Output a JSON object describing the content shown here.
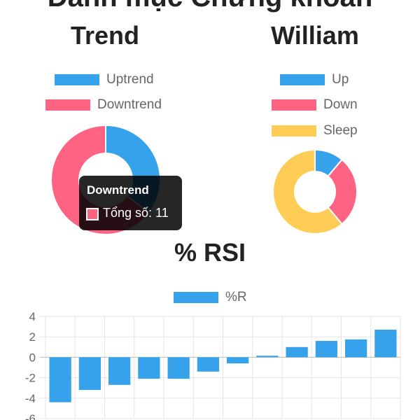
{
  "page": {
    "title": "Danh mục Chứng khoán"
  },
  "chart_data": [
    {
      "type": "pie",
      "variant": "doughnut",
      "title": "Trend",
      "labels": [
        "Uptrend",
        "Downtrend"
      ],
      "values": [
        6,
        11
      ],
      "colors": [
        "#36a2eb",
        "#ff6384"
      ],
      "legend_position": "top",
      "tooltip": {
        "title": "Downtrend",
        "body": "Tổng số: 11",
        "color": "#ff6384"
      }
    },
    {
      "type": "pie",
      "variant": "doughnut",
      "title": "William",
      "labels": [
        "Up",
        "Down",
        "Sleep"
      ],
      "values": [
        2,
        5,
        11
      ],
      "colors": [
        "#36a2eb",
        "#ff6384",
        "#ffcd56"
      ],
      "legend_position": "top"
    },
    {
      "type": "bar",
      "title": "% RSI",
      "series": [
        {
          "name": "%R",
          "color": "#36a2eb",
          "values": [
            -4.4,
            -3.2,
            -2.7,
            -2.1,
            -2.1,
            -1.4,
            -0.6,
            0.15,
            1.0,
            1.6,
            1.75,
            2.7
          ]
        }
      ],
      "ylim": [
        -6,
        4
      ],
      "yticks": [
        4,
        2,
        0,
        -2,
        -4,
        -6
      ],
      "grid": true,
      "legend_position": "top"
    }
  ]
}
